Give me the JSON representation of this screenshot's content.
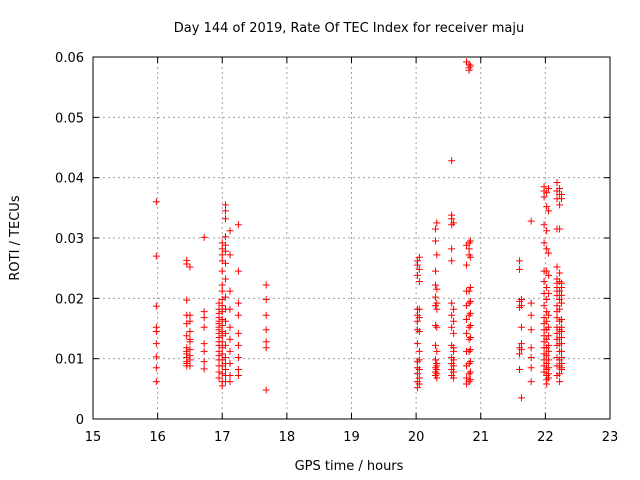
{
  "chart_data": {
    "type": "scatter",
    "title": "Day 144 of 2019, Rate Of TEC Index for receiver maju",
    "xlabel": "GPS time / hours",
    "ylabel": "ROTI / TECUs",
    "xlim": [
      15,
      23
    ],
    "ylim": [
      0,
      0.06
    ],
    "xticks": [
      15,
      16,
      17,
      18,
      19,
      20,
      21,
      22,
      23
    ],
    "xtick_labels": [
      "15",
      "16",
      "17",
      "18",
      "19",
      "20",
      "21",
      "22",
      "23"
    ],
    "yticks": [
      0,
      0.01,
      0.02,
      0.03,
      0.04,
      0.05,
      0.06
    ],
    "ytick_labels": [
      "0",
      "0.01",
      "0.02",
      "0.03",
      "0.04",
      "0.05",
      "0.06"
    ],
    "grid": true,
    "marker": "+",
    "colors": {
      "points": "#ff0000",
      "grid": "#a0a0a0",
      "axes": "#000000"
    },
    "series": [
      {
        "name": "ROTI",
        "x": [
          15.98,
          15.98,
          15.98,
          15.98,
          15.98,
          15.98,
          15.98,
          15.98,
          15.98,
          16.45,
          16.45,
          16.45,
          16.45,
          16.45,
          16.45,
          16.45,
          16.45,
          16.45,
          16.45,
          16.45,
          16.45,
          16.45,
          16.5,
          16.5,
          16.5,
          16.5,
          16.5,
          16.5,
          16.5,
          16.5,
          16.5,
          16.5,
          16.72,
          16.72,
          16.72,
          16.72,
          16.72,
          16.72,
          16.72,
          16.72,
          16.95,
          16.95,
          16.95,
          16.95,
          16.95,
          16.95,
          16.95,
          16.95,
          16.95,
          16.95,
          16.95,
          16.95,
          16.95,
          16.95,
          16.95,
          16.95,
          16.95,
          16.95,
          17.0,
          17.0,
          17.0,
          17.0,
          17.0,
          17.0,
          17.0,
          17.0,
          17.0,
          17.0,
          17.0,
          17.0,
          17.0,
          17.0,
          17.0,
          17.0,
          17.0,
          17.0,
          17.0,
          17.0,
          17.0,
          17.0,
          17.05,
          17.05,
          17.05,
          17.05,
          17.05,
          17.05,
          17.05,
          17.05,
          17.05,
          17.05,
          17.05,
          17.05,
          17.05,
          17.05,
          17.05,
          17.05,
          17.05,
          17.05,
          17.12,
          17.12,
          17.12,
          17.12,
          17.12,
          17.12,
          17.12,
          17.12,
          17.12,
          17.12,
          17.25,
          17.25,
          17.25,
          17.25,
          17.25,
          17.25,
          17.25,
          17.25,
          17.25,
          17.68,
          17.68,
          17.68,
          17.68,
          17.68,
          17.68,
          17.68,
          20.02,
          20.02,
          20.02,
          20.02,
          20.02,
          20.02,
          20.02,
          20.02,
          20.02,
          20.02,
          20.02,
          20.02,
          20.02,
          20.05,
          20.05,
          20.05,
          20.05,
          20.05,
          20.05,
          20.05,
          20.05,
          20.05,
          20.05,
          20.05,
          20.3,
          20.3,
          20.3,
          20.3,
          20.3,
          20.3,
          20.3,
          20.3,
          20.3,
          20.3,
          20.3,
          20.3,
          20.32,
          20.32,
          20.32,
          20.32,
          20.32,
          20.32,
          20.32,
          20.32,
          20.32,
          20.32,
          20.32,
          20.32,
          20.55,
          20.55,
          20.55,
          20.55,
          20.55,
          20.55,
          20.55,
          20.55,
          20.55,
          20.55,
          20.55,
          20.55,
          20.55,
          20.55,
          20.58,
          20.58,
          20.58,
          20.58,
          20.58,
          20.58,
          20.58,
          20.58,
          20.58,
          20.58,
          20.78,
          20.78,
          20.78,
          20.78,
          20.78,
          20.78,
          20.78,
          20.78,
          20.78,
          20.78,
          20.78,
          20.82,
          20.82,
          20.82,
          20.82,
          20.82,
          20.82,
          20.82,
          20.82,
          20.82,
          20.82,
          20.82,
          20.82,
          20.82,
          20.82,
          20.82,
          20.84,
          20.84,
          20.84,
          20.84,
          20.84,
          20.84,
          20.84,
          20.84,
          20.84,
          20.84,
          20.84,
          20.84,
          21.6,
          21.6,
          21.6,
          21.6,
          21.6,
          21.6,
          21.6,
          21.63,
          21.63,
          21.63,
          21.63,
          21.63,
          21.63,
          21.78,
          21.78,
          21.78,
          21.78,
          21.78,
          21.78,
          21.78,
          21.78,
          21.98,
          21.98,
          21.98,
          21.98,
          21.98,
          21.98,
          21.98,
          21.98,
          21.98,
          21.98,
          21.98,
          21.98,
          21.98,
          21.98,
          21.98,
          21.98,
          21.98,
          21.98,
          21.98,
          22.02,
          22.02,
          22.02,
          22.02,
          22.02,
          22.02,
          22.02,
          22.02,
          22.02,
          22.02,
          22.02,
          22.02,
          22.02,
          22.02,
          22.02,
          22.02,
          22.02,
          22.02,
          22.05,
          22.05,
          22.05,
          22.05,
          22.05,
          22.05,
          22.05,
          22.05,
          22.05,
          22.05,
          22.05,
          22.05,
          22.05,
          22.05,
          22.18,
          22.18,
          22.18,
          22.18,
          22.18,
          22.18,
          22.18,
          22.18,
          22.18,
          22.18,
          22.18,
          22.18,
          22.18,
          22.18,
          22.18,
          22.18,
          22.18,
          22.18,
          22.18,
          22.18,
          22.22,
          22.22,
          22.22,
          22.22,
          22.22,
          22.22,
          22.22,
          22.22,
          22.22,
          22.22,
          22.22,
          22.22,
          22.22,
          22.22,
          22.22,
          22.22,
          22.22,
          22.22,
          22.25,
          22.25,
          22.25,
          22.25,
          22.25,
          22.25,
          22.25,
          22.25,
          22.25,
          22.25,
          22.25,
          22.25,
          22.25,
          22.25,
          22.25,
          22.25
        ],
        "y": [
          0.036,
          0.027,
          0.0187,
          0.0152,
          0.0145,
          0.0125,
          0.0103,
          0.0085,
          0.0062,
          0.0263,
          0.0257,
          0.0197,
          0.0172,
          0.0158,
          0.0138,
          0.0118,
          0.0108,
          0.0102,
          0.0095,
          0.0088,
          0.0092,
          0.0112,
          0.0252,
          0.0172,
          0.0145,
          0.0128,
          0.0115,
          0.0105,
          0.0098,
          0.0088,
          0.0132,
          0.0162,
          0.0301,
          0.0178,
          0.0168,
          0.0152,
          0.0125,
          0.0112,
          0.0095,
          0.0083,
          0.0192,
          0.0182,
          0.0175,
          0.0168,
          0.0162,
          0.0158,
          0.0152,
          0.0148,
          0.0142,
          0.0135,
          0.0128,
          0.0122,
          0.0112,
          0.0105,
          0.0098,
          0.0088,
          0.0078,
          0.0068,
          0.0292,
          0.0282,
          0.0272,
          0.0262,
          0.0245,
          0.0222,
          0.0212,
          0.0198,
          0.0188,
          0.0178,
          0.0165,
          0.0155,
          0.0145,
          0.0138,
          0.0128,
          0.0118,
          0.0108,
          0.0098,
          0.0088,
          0.0075,
          0.0062,
          0.0055,
          0.0355,
          0.0345,
          0.0332,
          0.0302,
          0.0288,
          0.0278,
          0.0258,
          0.0232,
          0.0202,
          0.0182,
          0.0162,
          0.0142,
          0.0122,
          0.0102,
          0.0092,
          0.0082,
          0.0072,
          0.0062,
          0.0312,
          0.0272,
          0.0212,
          0.0182,
          0.0152,
          0.0132,
          0.0112,
          0.0092,
          0.0072,
          0.0062,
          0.0322,
          0.0245,
          0.0192,
          0.0172,
          0.0142,
          0.0122,
          0.0102,
          0.0082,
          0.0072,
          0.0222,
          0.0198,
          0.0172,
          0.0148,
          0.0128,
          0.0118,
          0.0048,
          0.0262,
          0.0255,
          0.0238,
          0.0182,
          0.0172,
          0.0162,
          0.0148,
          0.0125,
          0.0095,
          0.0085,
          0.0075,
          0.0062,
          0.0052,
          0.0268,
          0.0248,
          0.0228,
          0.0182,
          0.0168,
          0.0145,
          0.0112,
          0.0098,
          0.0082,
          0.0068,
          0.0058,
          0.0315,
          0.0295,
          0.0245,
          0.0222,
          0.0202,
          0.0188,
          0.0155,
          0.0122,
          0.0098,
          0.0085,
          0.0078,
          0.0072,
          0.0325,
          0.0272,
          0.0215,
          0.0192,
          0.0182,
          0.0152,
          0.0112,
          0.0092,
          0.0082,
          0.0075,
          0.0068,
          0.0088,
          0.0428,
          0.0338,
          0.0332,
          0.0322,
          0.0282,
          0.0262,
          0.0192,
          0.0172,
          0.0152,
          0.0122,
          0.0102,
          0.0092,
          0.0082,
          0.0072,
          0.0325,
          0.0182,
          0.0162,
          0.0142,
          0.0112,
          0.0098,
          0.0088,
          0.0078,
          0.0068,
          0.0118,
          0.0592,
          0.0288,
          0.0255,
          0.0212,
          0.0188,
          0.0165,
          0.0142,
          0.0112,
          0.0088,
          0.0068,
          0.0058,
          0.0588,
          0.0582,
          0.0578,
          0.0292,
          0.0282,
          0.0272,
          0.0212,
          0.0192,
          0.0172,
          0.0152,
          0.0132,
          0.0112,
          0.0092,
          0.0075,
          0.0062,
          0.0585,
          0.0295,
          0.0268,
          0.0218,
          0.0195,
          0.0175,
          0.0155,
          0.0135,
          0.0115,
          0.0095,
          0.0078,
          0.0065,
          0.0262,
          0.0248,
          0.0195,
          0.0185,
          0.0118,
          0.0108,
          0.0082,
          0.0198,
          0.0188,
          0.0152,
          0.0125,
          0.0115,
          0.0035,
          0.0328,
          0.0192,
          0.0172,
          0.0148,
          0.0118,
          0.0102,
          0.0085,
          0.0062,
          0.0385,
          0.0378,
          0.0368,
          0.0322,
          0.0292,
          0.0245,
          0.0228,
          0.0208,
          0.0188,
          0.0168,
          0.0158,
          0.0148,
          0.0138,
          0.0128,
          0.0118,
          0.0108,
          0.0098,
          0.0088,
          0.0078,
          0.0375,
          0.0352,
          0.0312,
          0.0282,
          0.0245,
          0.0218,
          0.0198,
          0.0178,
          0.0162,
          0.0148,
          0.0132,
          0.0118,
          0.0105,
          0.0092,
          0.0082,
          0.0072,
          0.0065,
          0.0058,
          0.0382,
          0.0345,
          0.0275,
          0.0238,
          0.0208,
          0.0172,
          0.0152,
          0.0138,
          0.0122,
          0.0112,
          0.0098,
          0.0085,
          0.0075,
          0.0068,
          0.0392,
          0.0378,
          0.0365,
          0.0315,
          0.0252,
          0.0232,
          0.0225,
          0.0218,
          0.0212,
          0.0205,
          0.0188,
          0.0178,
          0.0168,
          0.0152,
          0.0142,
          0.0132,
          0.0122,
          0.0102,
          0.0088,
          0.0072,
          0.0382,
          0.0372,
          0.0355,
          0.0315,
          0.0242,
          0.0228,
          0.0212,
          0.0198,
          0.0182,
          0.0162,
          0.0148,
          0.0135,
          0.0125,
          0.0112,
          0.0098,
          0.0088,
          0.0075,
          0.0062,
          0.0372,
          0.0365,
          0.0225,
          0.0218,
          0.0205,
          0.0192,
          0.0165,
          0.0152,
          0.0145,
          0.0135,
          0.0125,
          0.0112,
          0.0102,
          0.0092,
          0.0085,
          0.0082
        ]
      }
    ]
  }
}
